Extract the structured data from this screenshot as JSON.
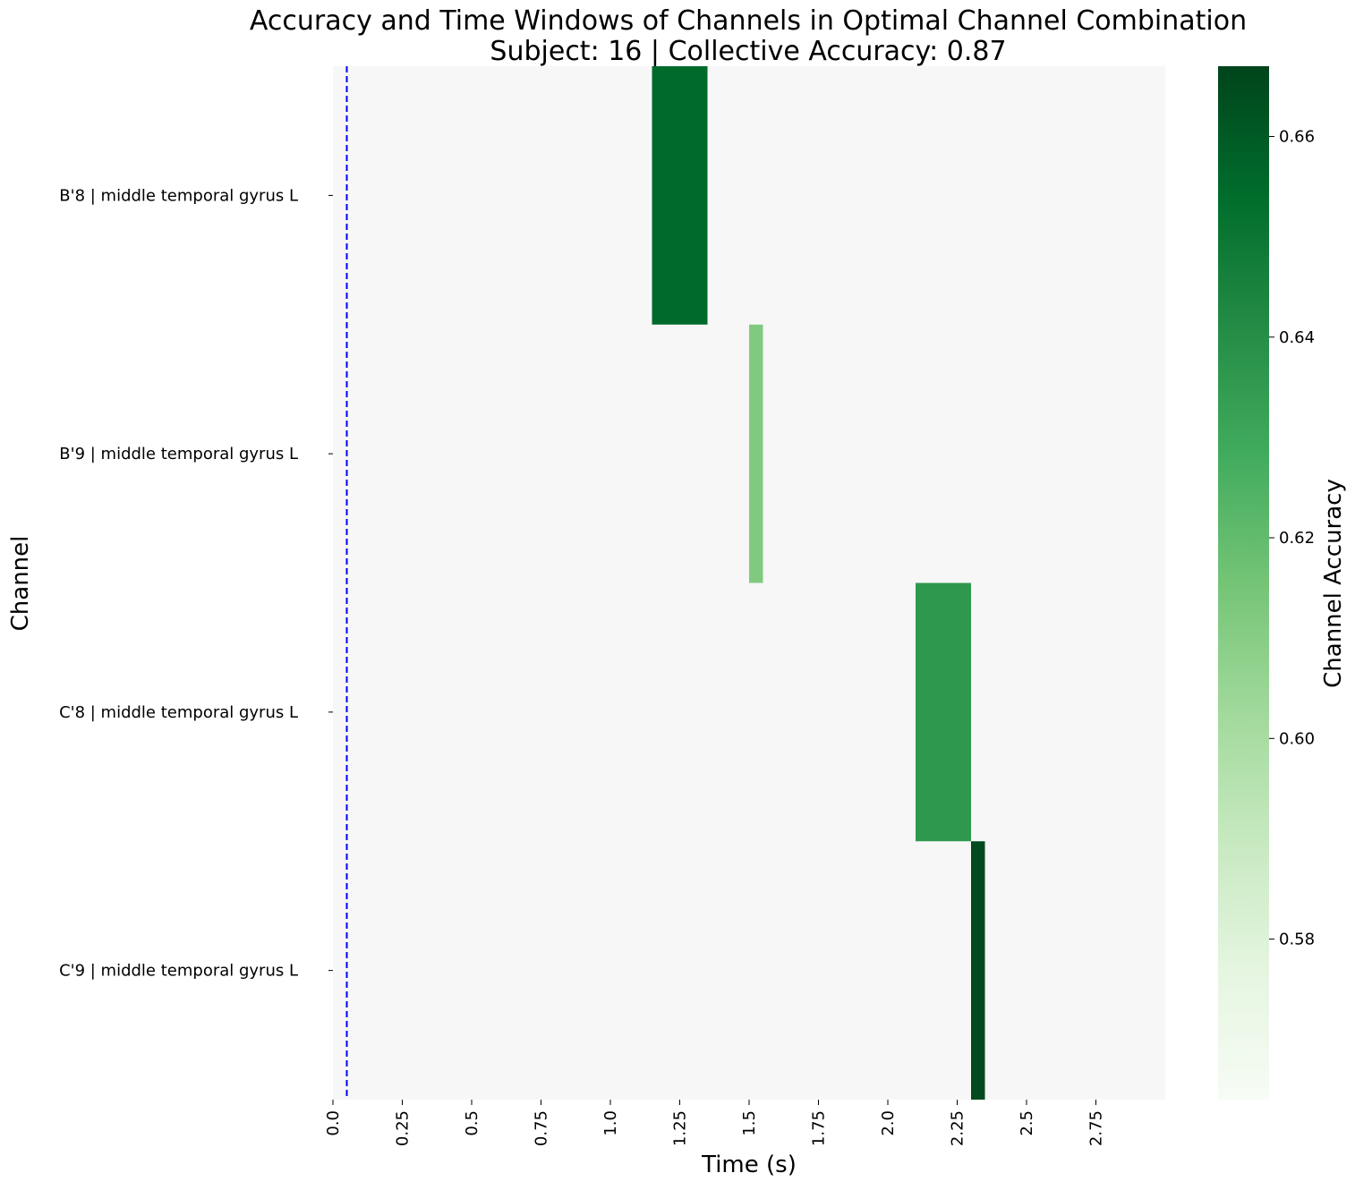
{
  "chart_data": {
    "type": "heatmap",
    "title": "Accuracy and Time Windows of Channels in Optimal Channel Combination",
    "subtitle": "Subject: 16 | Collective Accuracy: 0.87",
    "xlabel": "Time (s)",
    "ylabel": "Channel",
    "colorbar_label": "Channel Accuracy",
    "xlim": [
      0,
      3.0
    ],
    "x_ticks": [
      0.0,
      0.25,
      0.5,
      0.75,
      1.0,
      1.25,
      1.5,
      1.75,
      2.0,
      2.25,
      2.5,
      2.75
    ],
    "x_tick_labels": [
      "0.0",
      "0.25",
      "0.5",
      "0.75",
      "1.0",
      "1.25",
      "1.5",
      "1.75",
      "2.0",
      "2.25",
      "2.5",
      "2.75"
    ],
    "channels": [
      "B'8 | middle temporal gyrus L",
      "B'9 | middle temporal gyrus L",
      "C'8 | middle temporal gyrus L",
      "C'9 | middle temporal gyrus L"
    ],
    "windows": [
      {
        "channel": "B'8 | middle temporal gyrus L",
        "start": 1.15,
        "end": 1.35,
        "accuracy": 0.655
      },
      {
        "channel": "B'9 | middle temporal gyrus L",
        "start": 1.5,
        "end": 1.55,
        "accuracy": 0.612
      },
      {
        "channel": "C'8 | middle temporal gyrus L",
        "start": 2.1,
        "end": 2.3,
        "accuracy": 0.636
      },
      {
        "channel": "C'9 | middle temporal gyrus L",
        "start": 2.3,
        "end": 2.35,
        "accuracy": 0.665
      }
    ],
    "colorbar": {
      "range": [
        0.564,
        0.667
      ],
      "ticks": [
        0.58,
        0.6,
        0.62,
        0.64,
        0.66
      ],
      "tick_labels": [
        "0.58",
        "0.60",
        "0.62",
        "0.64",
        "0.66"
      ],
      "colormap": "Greens"
    },
    "background_color": "#f7f7f7",
    "reference_line": {
      "x": 0.05,
      "color": "#0000ff",
      "style": "dashed"
    },
    "grid": false
  }
}
